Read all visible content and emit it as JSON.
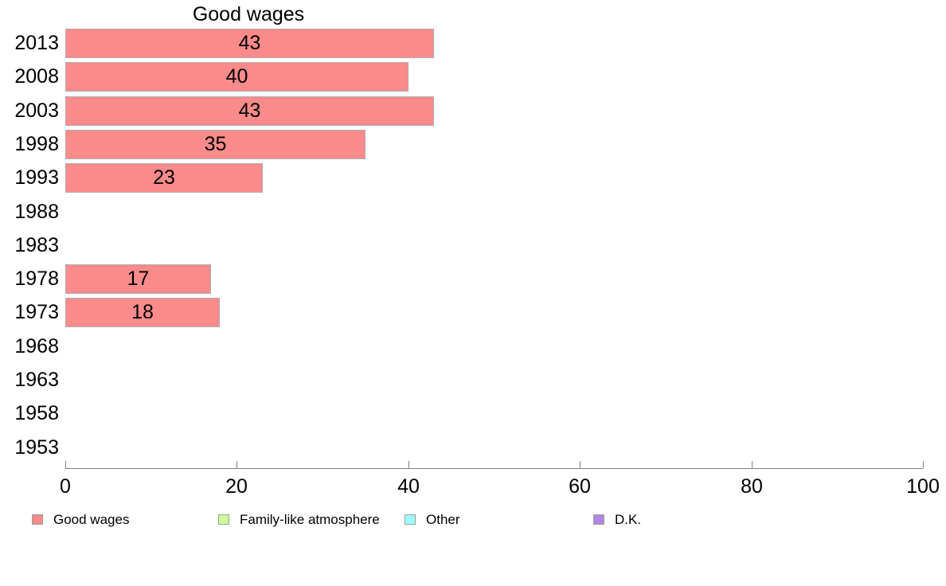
{
  "chart_data": {
    "type": "bar",
    "orientation": "horizontal",
    "title": "Good wages",
    "categories": [
      "2013",
      "2008",
      "2003",
      "1998",
      "1993",
      "1988",
      "1983",
      "1978",
      "1973",
      "1968",
      "1963",
      "1958",
      "1953"
    ],
    "values": [
      43,
      40,
      43,
      35,
      23,
      null,
      null,
      17,
      18,
      null,
      null,
      null,
      null
    ],
    "value_labels_shown": true,
    "xlim": [
      0,
      100
    ],
    "x_ticks": [
      0,
      20,
      40,
      60,
      80,
      100
    ],
    "grid": false,
    "bar_color": "#fb8b8b",
    "bar_border_color": "#ada9b0",
    "axis_color": "#808080",
    "legend_position": "bottom",
    "legend": [
      {
        "label": "Good wages",
        "color": "#fb8b8b"
      },
      {
        "label": "Family-like atmosphere",
        "color": "#ccff99"
      },
      {
        "label": "Other",
        "color": "#9ffcfc"
      },
      {
        "label": "D.K.",
        "color": "#b285e2"
      }
    ]
  }
}
